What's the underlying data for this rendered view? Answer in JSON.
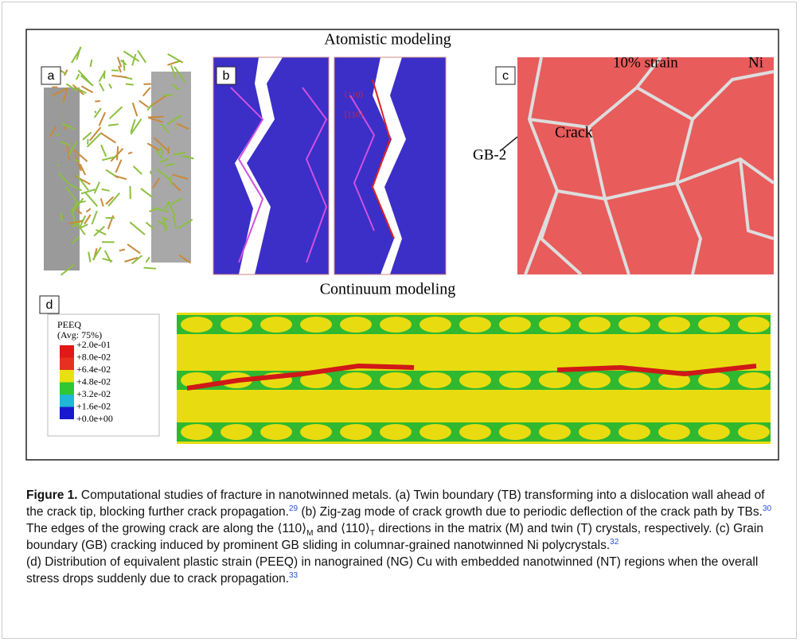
{
  "figure": {
    "heading": "Atomistic modeling",
    "subheading": "Continuum modeling",
    "panels": {
      "a": "a",
      "b": "b",
      "c": "c",
      "d": "d"
    },
    "panel_b_labels": [
      "⟨110⟩",
      "⟨110⟩"
    ],
    "panel_c": {
      "strain": "10% strain",
      "material": "Ni",
      "crack": "Crack",
      "gb": "GB-2"
    },
    "legend": {
      "title": "PEEQ",
      "subtitle": "(Avg: 75%)",
      "labels": [
        "+2.0e-01",
        "+8.0e-02",
        "+6.4e-02",
        "+4.8e-02",
        "+3.2e-02",
        "+1.6e-02",
        "+0.0e+00"
      ]
    }
  },
  "caption": {
    "label": "Figure 1.",
    "text": [
      " Computational studies of fracture in nanotwinned metals. (a) Twin boundary (TB) transforming into a dislocation wall ahead of the crack tip, blocking further crack propagation.",
      " (b) Zig-zag mode of crack growth due to periodic deflection of the crack path by TBs.",
      " The edges of the growing crack are along the ⟨110⟩",
      " and ⟨110⟩",
      " directions in the matrix (M) and twin (T) crystals, respectively. (c) Grain boundary (GB) cracking induced by prominent GB sliding in columnar-grained nanotwinned Ni polycrystals.",
      "(d) Distribution of equivalent plastic strain (PEEQ) in nanograined (NG) Cu with embedded nanotwinned (NT) regions when the overall stress drops suddenly due to crack propagation."
    ],
    "sup": [
      "29",
      "30",
      "32",
      "33"
    ],
    "sub": [
      "M",
      "T"
    ]
  }
}
